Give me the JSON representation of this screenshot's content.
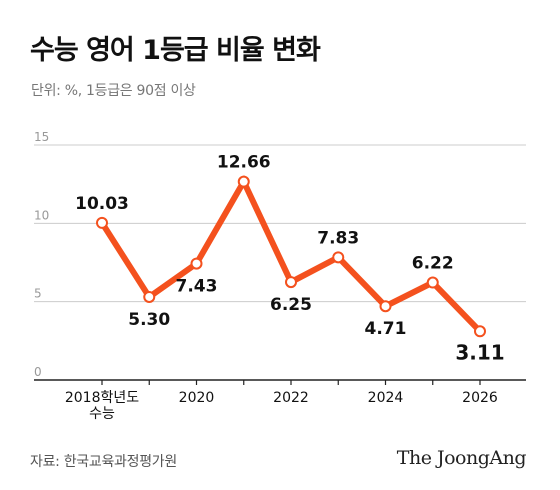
{
  "header": {
    "title": "수능 영어 1등급 비율 변화",
    "subtitle": "단위: %, 1등급은 90점 이상"
  },
  "footer": {
    "source": "자료: 한국교육과정평가원",
    "logo": "The JoongAng"
  },
  "colors": {
    "line": "#f4511e",
    "grid": "#cccccc",
    "axis": "#222222",
    "tick_text": "#999999"
  },
  "chart_data": {
    "type": "line",
    "x": [
      2018,
      2019,
      2020,
      2021,
      2022,
      2023,
      2024,
      2025,
      2026
    ],
    "series": [
      {
        "values": [
          10.03,
          5.3,
          7.43,
          12.66,
          6.25,
          7.83,
          4.71,
          6.22,
          3.11
        ]
      }
    ],
    "data_labels": [
      "10.03",
      "5.30",
      "7.43",
      "12.66",
      "6.25",
      "7.83",
      "4.71",
      "6.22",
      "3.11"
    ],
    "x_tick_labels": [
      {
        "x": 2018,
        "lines": [
          "2018학년도",
          "수능"
        ]
      },
      {
        "x": 2020,
        "lines": [
          "2020"
        ]
      },
      {
        "x": 2022,
        "lines": [
          "2022"
        ]
      },
      {
        "x": 2024,
        "lines": [
          "2024"
        ]
      },
      {
        "x": 2026,
        "lines": [
          "2026"
        ]
      }
    ],
    "y_ticks": [
      0,
      5,
      10,
      15
    ],
    "ylim": [
      0,
      15
    ],
    "xlim": [
      2018,
      2026
    ],
    "grid": true,
    "xlabel": "",
    "ylabel": ""
  }
}
